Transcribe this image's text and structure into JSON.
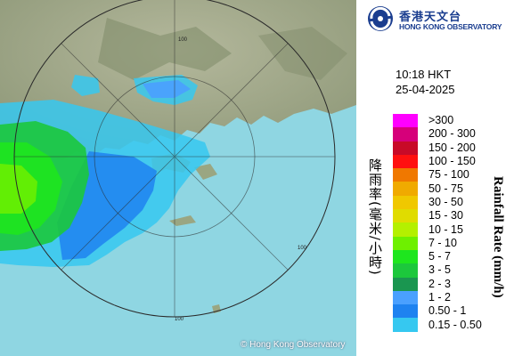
{
  "header": {
    "org_name_cn": "香港天文台",
    "org_name_en": "HONG KONG OBSERVATORY",
    "logo_icon": "hko-logo-icon"
  },
  "timestamp": {
    "time": "10:18 HKT",
    "date": "25-04-2025"
  },
  "map": {
    "copyright": "© Hong Kong Observatory",
    "range_ring_labels": [
      "100",
      "100",
      "100"
    ]
  },
  "legend": {
    "title_cn": "降雨率(毫米/小時)",
    "title_en": "Rainfall Rate (mm/h)",
    "categories": [
      {
        "label": ">300",
        "color": "#ff00ff"
      },
      {
        "label": "200 - 300",
        "color": "#d6007a"
      },
      {
        "label": "150 - 200",
        "color": "#c80a28"
      },
      {
        "label": "100 - 150",
        "color": "#ff1010"
      },
      {
        "label": "75 - 100",
        "color": "#f07800"
      },
      {
        "label": "50 - 75",
        "color": "#f0aa00"
      },
      {
        "label": "30 - 50",
        "color": "#f0c800"
      },
      {
        "label": "15 - 30",
        "color": "#e0dc00"
      },
      {
        "label": "10 - 15",
        "color": "#b4f000"
      },
      {
        "label": "7 - 10",
        "color": "#6ef000"
      },
      {
        "label": "5 - 7",
        "color": "#1ee61e"
      },
      {
        "label": "3 - 5",
        "color": "#1cc83c"
      },
      {
        "label": "2 - 3",
        "color": "#1a9650"
      },
      {
        "label": "1 - 2",
        "color": "#4aa0ff"
      },
      {
        "label": "0.50 - 1",
        "color": "#1e82f0"
      },
      {
        "label": "0.15 - 0.50",
        "color": "#36c8f0"
      }
    ]
  }
}
